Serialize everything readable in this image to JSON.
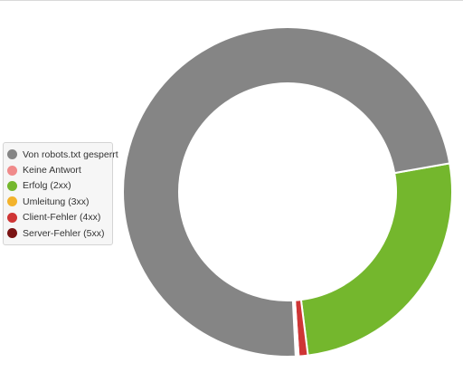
{
  "chart_data": {
    "type": "pie",
    "donut": true,
    "legend_placement": "left",
    "series": [
      {
        "name": "Von robots.txt gesperrt",
        "value": 73.0,
        "color": "#858585"
      },
      {
        "name": "Keine Antwort",
        "value": 0.15,
        "color": "#f08a8a"
      },
      {
        "name": "Erfolg (2xx)",
        "value": 25.8,
        "color": "#74b72d"
      },
      {
        "name": "Umleitung (3xx)",
        "value": 0.05,
        "color": "#f3b32c"
      },
      {
        "name": "Client-Fehler (4xx)",
        "value": 0.9,
        "color": "#cf3535"
      },
      {
        "name": "Server-Fehler (5xx)",
        "value": 0.1,
        "color": "#7a1313"
      }
    ],
    "draw_order": [
      "Erfolg (2xx)",
      "Client-Fehler (4xx)",
      "Server-Fehler (5xx)",
      "Keine Antwort",
      "Umleitung (3xx)",
      "Von robots.txt gesperrt"
    ]
  }
}
